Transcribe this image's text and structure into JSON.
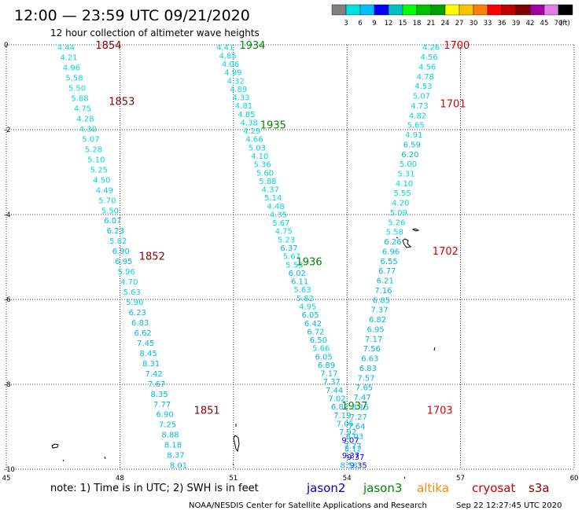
{
  "header": {
    "title": "12:00 — 23:59 UTC 09/21/2020",
    "subtitle": "12 hour collection of altimeter wave heights"
  },
  "colorbar": {
    "unit": "(ft)",
    "ticks": [
      "3",
      "6",
      "9",
      "12",
      "15",
      "18",
      "21",
      "24",
      "27",
      "30",
      "33",
      "36",
      "39",
      "42",
      "45",
      "70"
    ],
    "colors": [
      "#808080",
      "#00e0e0",
      "#00bfff",
      "#0000ff",
      "#00c0c0",
      "#00ff00",
      "#00c000",
      "#00a000",
      "#ffff00",
      "#ffc000",
      "#ff8000",
      "#ff0000",
      "#c00000",
      "#800000",
      "#a000a0",
      "#e080e0",
      "#000000"
    ]
  },
  "footer": {
    "note": "note:  1) Time is in UTC;  2) SWH is in feet",
    "credit": "NOAA/NESDIS Center for Satellite Applications and Research",
    "timestamp": "Sep 22 12:27:45 UTC 2020"
  },
  "legend": [
    {
      "name": "jason2",
      "color": "#0000cc"
    },
    {
      "name": "jason3",
      "color": "#008800"
    },
    {
      "name": "altika",
      "color": "#ff8800"
    },
    {
      "name": "cryosat",
      "color": "#cc0000"
    },
    {
      "name": "s3a",
      "color": "#8b0000"
    }
  ],
  "chart_data": {
    "type": "scatter",
    "title": "12:00 — 23:59 UTC 09/21/2020",
    "xlabel": "",
    "ylabel": "",
    "xlim": [
      45,
      60
    ],
    "ylim": [
      -10,
      0
    ],
    "xticks": [
      45,
      48,
      51,
      54,
      57,
      60
    ],
    "yticks": [
      0,
      -2,
      -4,
      -6,
      -8,
      -10
    ],
    "grid": true,
    "tracks": [
      {
        "satellite": "s3a",
        "label_color": "#8b0000",
        "start": [
          46.58,
          -0.05
        ],
        "end": [
          49.55,
          -9.9
        ],
        "values": [
          "4.44",
          "4.21",
          "4.96",
          "5.58",
          "5.50",
          "5.88",
          "4.75",
          "4.28",
          "4.30",
          "5.07",
          "5.28",
          "5.10",
          "5.25",
          "4.50",
          "4.49",
          "5.70",
          "5.50",
          "6.07",
          "6.23",
          "5.82",
          "6.90",
          "6.95",
          "5.96",
          "4.70",
          "5.63",
          "5.90",
          "6.23",
          "6.83",
          "6.62",
          "7.45",
          "8.45",
          "8.31",
          "7.42",
          "7.67",
          "8.35",
          "7.77",
          "6.90",
          "7.25",
          "8.88",
          "8.18",
          "8.37",
          "8.01"
        ],
        "times": [
          {
            "t": "1854",
            "lon": 47.7,
            "lat": 0.0
          },
          {
            "t": "1853",
            "lon": 48.05,
            "lat": -1.32
          },
          {
            "t": "1852",
            "lon": 48.85,
            "lat": -4.97
          },
          {
            "t": "1851",
            "lon": 50.3,
            "lat": -8.6
          }
        ]
      },
      {
        "satellite": "jason3",
        "label_color": "#008800",
        "start": [
          50.78,
          -0.05
        ],
        "end": [
          54.3,
          -9.9
        ],
        "values": [
          "4.41",
          "4.85",
          "4.06",
          "4.99",
          "4.32",
          "4.89",
          "4.33",
          "4.81",
          "4.85",
          "4.38",
          "4.29",
          "4.66",
          "5.03",
          "4.10",
          "5.36",
          "5.60",
          "5.88",
          "4.37",
          "5.14",
          "4.48",
          "4.35",
          "5.67",
          "4.75",
          "5.23",
          "6.37",
          "5.67",
          "5.53",
          "6.02",
          "6.11",
          "5.63",
          "5.82",
          "4.95",
          "6.05",
          "6.42",
          "6.72",
          "6.50",
          "5.66",
          "6.05",
          "6.89",
          "7.17",
          "7.37",
          "7.44",
          "7.02",
          "6.82",
          "7.19",
          "7.05",
          "7.92",
          "9.07",
          "8.12",
          "9.37",
          "9.35"
        ],
        "times": [
          {
            "t": "1934",
            "lon": 51.5,
            "lat": 0.0
          },
          {
            "t": "1935",
            "lon": 52.05,
            "lat": -1.88
          },
          {
            "t": "1936",
            "lon": 53.0,
            "lat": -5.1
          },
          {
            "t": "1937",
            "lon": 54.2,
            "lat": -8.5
          }
        ]
      },
      {
        "satellite": "cryosat",
        "label_color": "#dd0000",
        "start": [
          56.22,
          -0.05
        ],
        "end": [
          54.05,
          -9.9
        ],
        "values": [
          "4.26",
          "4.56",
          "4.56",
          "4.78",
          "4.53",
          "5.07",
          "4.73",
          "4.82",
          "5.65",
          "4.91",
          "6.59",
          "6.20",
          "5.00",
          "5.31",
          "4.10",
          "5.55",
          "4.20",
          "5.09",
          "5.26",
          "5.58",
          "6.26",
          "6.96",
          "6.55",
          "6.77",
          "6.21",
          "7.16",
          "6.85",
          "7.37",
          "6.82",
          "6.95",
          "7.17",
          "7.56",
          "6.63",
          "6.83",
          "7.57",
          "7.65",
          "7.47",
          "8.15",
          "7.27",
          "7.64",
          "8.03",
          "7.77",
          "9.37",
          "8.58"
        ],
        "times": [
          {
            "t": "1700",
            "lon": 56.9,
            "lat": 0.0
          },
          {
            "t": "1701",
            "lon": 56.8,
            "lat": -1.38
          },
          {
            "t": "1702",
            "lon": 56.6,
            "lat": -4.85
          },
          {
            "t": "1703",
            "lon": 56.45,
            "lat": -8.6
          }
        ]
      }
    ]
  }
}
